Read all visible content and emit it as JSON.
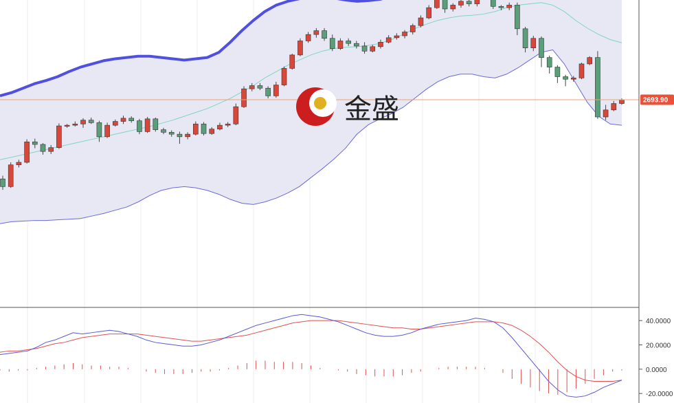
{
  "logo": {
    "text": "金盛"
  },
  "colors": {
    "up": "#d9473a",
    "down": "#5a9e7a",
    "band_fill": "#e8e8f4",
    "band_upper": "#5050e0",
    "band_lower": "#6a6ad8",
    "ma": "#7fd4c4",
    "price_line": "#f0a070",
    "price_tag": "#e8523a",
    "macd": "#5858d8",
    "signal": "#e05050",
    "hist": "#e05050"
  },
  "chart_data": [
    {
      "type": "candlestick",
      "title": "",
      "current_price": 2693.9,
      "price_label": "2693.90",
      "ylim": [
        2370,
        2850
      ],
      "candles": [
        [
          2570,
          2558,
          2575,
          2553
        ],
        [
          2558,
          2592,
          2596,
          2556
        ],
        [
          2592,
          2596,
          2600,
          2588
        ],
        [
          2596,
          2628,
          2632,
          2594
        ],
        [
          2628,
          2624,
          2633,
          2618
        ],
        [
          2624,
          2613,
          2626,
          2608
        ],
        [
          2613,
          2619,
          2623,
          2609
        ],
        [
          2619,
          2653,
          2657,
          2617
        ],
        [
          2653,
          2654,
          2656,
          2650
        ],
        [
          2654,
          2656,
          2660,
          2652
        ],
        [
          2656,
          2662,
          2665,
          2650
        ],
        [
          2662,
          2658,
          2666,
          2656
        ],
        [
          2658,
          2636,
          2661,
          2628
        ],
        [
          2636,
          2654,
          2658,
          2634
        ],
        [
          2654,
          2660,
          2663,
          2652
        ],
        [
          2660,
          2665,
          2669,
          2656
        ],
        [
          2665,
          2661,
          2668,
          2658
        ],
        [
          2661,
          2644,
          2664,
          2640
        ],
        [
          2644,
          2664,
          2667,
          2642
        ],
        [
          2664,
          2647,
          2666,
          2644
        ],
        [
          2647,
          2643,
          2650,
          2640
        ],
        [
          2643,
          2640,
          2646,
          2636
        ],
        [
          2640,
          2636,
          2644,
          2625
        ],
        [
          2636,
          2640,
          2643,
          2632
        ],
        [
          2640,
          2656,
          2660,
          2638
        ],
        [
          2656,
          2641,
          2659,
          2638
        ],
        [
          2641,
          2648,
          2651,
          2639
        ],
        [
          2648,
          2654,
          2658,
          2646
        ],
        [
          2654,
          2656,
          2659,
          2651
        ],
        [
          2656,
          2683,
          2688,
          2654
        ],
        [
          2683,
          2711,
          2715,
          2681
        ],
        [
          2711,
          2716,
          2720,
          2707
        ],
        [
          2716,
          2712,
          2720,
          2709
        ],
        [
          2712,
          2700,
          2715,
          2696
        ],
        [
          2700,
          2717,
          2722,
          2697
        ],
        [
          2717,
          2743,
          2746,
          2715
        ],
        [
          2743,
          2764,
          2766,
          2741
        ],
        [
          2764,
          2786,
          2790,
          2762
        ],
        [
          2786,
          2796,
          2800,
          2783
        ],
        [
          2796,
          2802,
          2806,
          2791
        ],
        [
          2802,
          2790,
          2806,
          2786
        ],
        [
          2790,
          2774,
          2796,
          2770
        ],
        [
          2774,
          2786,
          2790,
          2772
        ],
        [
          2786,
          2782,
          2790,
          2778
        ],
        [
          2782,
          2778,
          2786,
          2774
        ],
        [
          2778,
          2770,
          2784,
          2766
        ],
        [
          2770,
          2777,
          2780,
          2768
        ],
        [
          2777,
          2784,
          2788,
          2774
        ],
        [
          2784,
          2791,
          2795,
          2782
        ],
        [
          2791,
          2794,
          2798,
          2788
        ],
        [
          2794,
          2800,
          2803,
          2790
        ],
        [
          2800,
          2810,
          2813,
          2796
        ],
        [
          2810,
          2822,
          2826,
          2807
        ],
        [
          2822,
          2838,
          2842,
          2820
        ],
        [
          2838,
          2851,
          2855,
          2836
        ],
        [
          2851,
          2836,
          2855,
          2830
        ],
        [
          2836,
          2842,
          2845,
          2832
        ],
        [
          2842,
          2848,
          2852,
          2838
        ],
        [
          2848,
          2844,
          2852,
          2840
        ],
        [
          2844,
          2862,
          2866,
          2840
        ],
        [
          2862,
          2872,
          2876,
          2860
        ],
        [
          2872,
          2840,
          2876,
          2836
        ],
        [
          2840,
          2838,
          2842,
          2834
        ],
        [
          2838,
          2842,
          2846,
          2834
        ],
        [
          2842,
          2805,
          2846,
          2795
        ],
        [
          2805,
          2775,
          2808,
          2768
        ],
        [
          2775,
          2790,
          2794,
          2770
        ],
        [
          2790,
          2760,
          2793,
          2745
        ],
        [
          2760,
          2745,
          2763,
          2735
        ],
        [
          2745,
          2730,
          2748,
          2720
        ],
        [
          2730,
          2726,
          2733,
          2715
        ],
        [
          2726,
          2728,
          2731,
          2722
        ],
        [
          2728,
          2750,
          2752,
          2726
        ],
        [
          2750,
          2760,
          2762,
          2748
        ],
        [
          2760,
          2667,
          2770,
          2664
        ],
        [
          2667,
          2678,
          2686,
          2662
        ],
        [
          2678,
          2688,
          2692,
          2676
        ],
        [
          2688,
          2693.9,
          2696,
          2686
        ]
      ],
      "bollinger": {
        "upper": [
          2700,
          2705,
          2712,
          2719,
          2724,
          2730,
          2738,
          2745,
          2750,
          2755,
          2758,
          2760,
          2762,
          2762,
          2760,
          2758,
          2756,
          2758,
          2760,
          2768,
          2784,
          2802,
          2818,
          2832,
          2842,
          2848,
          2852,
          2855,
          2856,
          2853,
          2850,
          2848,
          2849,
          2851,
          2856,
          2866,
          2880,
          2895,
          2908,
          2916,
          2920,
          2921,
          2920,
          2922,
          2930,
          2938,
          2944,
          2950,
          2951,
          2950,
          2944,
          2936,
          2930,
          2926,
          2920
        ],
        "mid": [
          2600,
          2604,
          2608,
          2612,
          2616,
          2620,
          2624,
          2628,
          2632,
          2636,
          2640,
          2644,
          2648,
          2652,
          2657,
          2662,
          2668,
          2674,
          2680,
          2688,
          2696,
          2706,
          2716,
          2728,
          2738,
          2748,
          2756,
          2764,
          2770,
          2774,
          2776,
          2777,
          2779,
          2782,
          2788,
          2796,
          2805,
          2812,
          2818,
          2822,
          2825,
          2826,
          2828,
          2832,
          2838,
          2842,
          2844,
          2846,
          2842,
          2832,
          2818,
          2806,
          2796,
          2788,
          2783
        ],
        "lower": [
          2500,
          2503,
          2504,
          2505,
          2505,
          2506,
          2507,
          2508,
          2512,
          2516,
          2521,
          2526,
          2534,
          2544,
          2552,
          2556,
          2558,
          2556,
          2552,
          2546,
          2538,
          2532,
          2530,
          2534,
          2540,
          2548,
          2558,
          2572,
          2586,
          2601,
          2618,
          2640,
          2655,
          2664,
          2672,
          2682,
          2696,
          2710,
          2722,
          2730,
          2734,
          2734,
          2730,
          2728,
          2734,
          2744,
          2756,
          2768,
          2772,
          2750,
          2720,
          2690,
          2668,
          2656,
          2654
        ]
      }
    },
    {
      "type": "macd",
      "ylim": [
        -25,
        48
      ],
      "ticks": [
        {
          "value": 40,
          "label": "40.0000"
        },
        {
          "value": 20,
          "label": "20.0000"
        },
        {
          "value": 0,
          "label": "0.0000"
        },
        {
          "value": -20,
          "label": "-20.0000"
        }
      ],
      "macd": [
        12,
        13,
        14,
        15,
        18,
        22,
        24,
        27,
        30,
        29,
        30,
        31,
        32,
        31,
        29,
        27,
        24,
        22,
        21,
        20,
        19,
        19,
        20,
        22,
        24,
        27,
        30,
        33,
        36,
        38,
        40,
        42,
        44,
        45,
        44,
        43,
        41,
        39,
        36,
        33,
        30,
        28,
        27,
        27,
        28,
        30,
        33,
        35,
        37,
        38,
        39,
        40,
        42,
        41,
        39,
        34,
        26,
        17,
        8,
        -1,
        -10,
        -17,
        -22,
        -23,
        -22,
        -19,
        -15,
        -12,
        -9
      ],
      "signal": [
        14,
        15,
        15,
        16,
        17,
        19,
        21,
        22,
        24,
        26,
        27,
        28,
        29,
        29,
        29,
        29,
        28,
        27,
        26,
        25,
        24,
        23,
        23,
        24,
        25,
        26,
        27,
        28,
        30,
        32,
        34,
        36,
        38,
        39,
        40,
        40,
        40,
        40,
        39,
        38,
        37,
        36,
        35,
        34,
        34,
        33,
        33,
        34,
        35,
        36,
        37,
        38,
        39,
        39,
        39,
        38,
        36,
        32,
        27,
        21,
        14,
        6,
        -1,
        -6,
        -9,
        -10,
        -10,
        -10,
        -9
      ],
      "histogram": [
        -1,
        -2,
        -1,
        -1,
        1,
        2,
        3,
        4,
        5,
        4,
        3,
        3,
        2,
        2,
        1,
        0,
        -2,
        -3,
        -4,
        -4,
        -4,
        -3,
        -2,
        -2,
        -1,
        1,
        3,
        5,
        7,
        7,
        6,
        6,
        6,
        5,
        3,
        1,
        0,
        -1,
        -2,
        -4,
        -5,
        -6,
        -6,
        -6,
        -5,
        -3,
        -2,
        0,
        1,
        2,
        2,
        2,
        2,
        1,
        0,
        -3,
        -8,
        -12,
        -15,
        -18,
        -20,
        -21,
        -19,
        -16,
        -12,
        -8,
        -5,
        -2,
        -1
      ]
    }
  ]
}
